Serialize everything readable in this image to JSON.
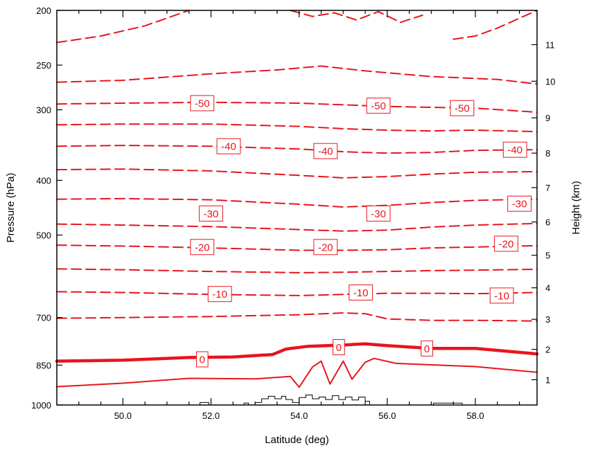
{
  "chart_data": {
    "type": "line",
    "chart_kind": "cross-section contour plot of temperature",
    "xlabel": "Latitude (deg)",
    "ylabel": "Pressure (hPa)",
    "y2label": "Height (km)",
    "xlim": [
      48.5,
      59.4
    ],
    "ylim": [
      1000,
      200
    ],
    "y_scale": "log",
    "y_reversed": true,
    "grid": false,
    "legend": "none",
    "x_ticks": [
      "50.0",
      "52.0",
      "54.0",
      "56.0",
      "58.0"
    ],
    "x_tick_values": [
      50,
      52,
      54,
      56,
      58
    ],
    "y_ticks": [
      "200",
      "250",
      "300",
      "400",
      "500",
      "700",
      "850",
      "1000"
    ],
    "y_tick_values": [
      200,
      250,
      300,
      400,
      500,
      700,
      850,
      1000
    ],
    "y2_ticks": [
      "1",
      "2",
      "3",
      "4",
      "5",
      "6",
      "7",
      "8",
      "9",
      "10",
      "11"
    ],
    "y2_tick_pressures": [
      902,
      797,
      705,
      620,
      543,
      474,
      412,
      358,
      310,
      267,
      230
    ],
    "contour_color": "#e8141b",
    "terrain_color": "#000000",
    "series": [
      {
        "level": -55,
        "style": "dashed",
        "x": [
          48.5,
          49.5,
          50.5,
          51.5
        ],
        "y": [
          228,
          222,
          213,
          200
        ]
      },
      {
        "level": -55,
        "style": "dashed",
        "x": [
          57.5,
          58.0,
          58.5,
          59.4
        ],
        "y": [
          225,
          222,
          215,
          200
        ]
      },
      {
        "level": -55,
        "style": "dashed",
        "x": [
          53.8,
          54.3,
          54.8,
          55.3,
          55.8,
          56.3,
          56.8
        ],
        "y": [
          200,
          205,
          202,
          208,
          201,
          210,
          204
        ]
      },
      {
        "level": -50,
        "style": "dashed",
        "x": [
          48.5,
          50,
          52,
          53.5,
          54.5,
          55.5,
          57,
          58.5,
          59.4
        ],
        "y": [
          268,
          266,
          259,
          255,
          251,
          256,
          262,
          265,
          270
        ]
      },
      {
        "level": -50,
        "style": "dashed",
        "x": [
          48.5,
          50,
          52,
          54,
          55,
          56,
          57,
          58,
          59.4
        ],
        "y": [
          293,
          292,
          291,
          292,
          294,
          296,
          297,
          298,
          303
        ]
      },
      {
        "level": -45,
        "style": "dashed",
        "x": [
          48.5,
          50,
          52,
          54,
          55,
          56,
          57,
          58,
          59.4
        ],
        "y": [
          319,
          318,
          318,
          321,
          324,
          326,
          327,
          326,
          328
        ]
      },
      {
        "level": -40,
        "style": "dashed",
        "x": [
          48.5,
          50,
          52,
          54,
          55,
          56,
          57,
          58,
          59.4
        ],
        "y": [
          348,
          347,
          348,
          352,
          356,
          358,
          357,
          354,
          353
        ]
      },
      {
        "level": -35,
        "style": "dashed",
        "x": [
          48.5,
          50,
          52,
          54,
          55,
          56,
          57,
          58,
          59.4
        ],
        "y": [
          383,
          382,
          385,
          392,
          396,
          394,
          390,
          387,
          386
        ]
      },
      {
        "level": -30,
        "style": "dashed",
        "x": [
          48.5,
          50,
          52,
          54,
          55,
          56,
          57,
          58,
          59.4
        ],
        "y": [
          432,
          431,
          433,
          441,
          446,
          443,
          438,
          434,
          432
        ]
      },
      {
        "level": -25,
        "style": "dashed",
        "x": [
          48.5,
          50,
          52,
          54,
          55,
          56,
          57,
          58,
          59.4
        ],
        "y": [
          478,
          480,
          483,
          489,
          492,
          490,
          484,
          480,
          477
        ]
      },
      {
        "level": -20,
        "style": "dashed",
        "x": [
          48.5,
          50,
          52,
          54,
          55,
          56,
          57,
          58,
          59.4
        ],
        "y": [
          521,
          523,
          527,
          532,
          532,
          531,
          527,
          525,
          522
        ]
      },
      {
        "level": -15,
        "style": "dashed",
        "x": [
          48.5,
          50,
          52,
          54,
          55,
          56,
          57,
          58,
          59.4
        ],
        "y": [
          574,
          576,
          580,
          583,
          582,
          580,
          578,
          577,
          575
        ]
      },
      {
        "level": -10,
        "style": "dashed",
        "x": [
          48.5,
          50,
          52,
          54,
          55,
          56,
          57,
          58,
          59.4
        ],
        "y": [
          630,
          632,
          637,
          640,
          637,
          634,
          634,
          635,
          632
        ]
      },
      {
        "level": -5,
        "style": "dashed",
        "x": [
          48.5,
          50,
          52,
          54,
          55,
          55.5,
          56,
          57,
          58,
          59.4
        ],
        "y": [
          702,
          700,
          697,
          692,
          687,
          689,
          704,
          708,
          708,
          710
        ]
      },
      {
        "level": 0,
        "style": "thick",
        "x": [
          48.5,
          50,
          51.5,
          52.5,
          53.4,
          53.7,
          54.2,
          55.0,
          55.5,
          56.0,
          57.0,
          58.0,
          59.4
        ],
        "y": [
          836,
          833,
          824,
          822,
          814,
          796,
          787,
          783,
          779,
          785,
          794,
          794,
          812
        ]
      },
      {
        "level": 5,
        "style": "solid",
        "x": [
          48.5,
          50,
          51.5,
          53,
          53.8,
          54.0,
          54.3,
          54.5,
          54.7,
          55.0,
          55.2,
          55.5,
          55.7,
          56.2,
          57,
          58,
          59.4
        ],
        "y": [
          928,
          915,
          897,
          899,
          890,
          930,
          857,
          836,
          918,
          836,
          900,
          840,
          827,
          844,
          849,
          855,
          875
        ]
      }
    ],
    "labels": [
      {
        "text": "-50",
        "x": 51.8,
        "y": 292
      },
      {
        "text": "-50",
        "x": 55.8,
        "y": 295
      },
      {
        "text": "-50",
        "x": 57.7,
        "y": 298
      },
      {
        "text": "-40",
        "x": 52.4,
        "y": 348
      },
      {
        "text": "-40",
        "x": 54.6,
        "y": 355
      },
      {
        "text": "-40",
        "x": 58.9,
        "y": 353
      },
      {
        "text": "-30",
        "x": 52.0,
        "y": 458
      },
      {
        "text": "-30",
        "x": 55.8,
        "y": 458
      },
      {
        "text": "-30",
        "x": 59.0,
        "y": 440
      },
      {
        "text": "-20",
        "x": 51.8,
        "y": 525
      },
      {
        "text": "-20",
        "x": 54.6,
        "y": 525
      },
      {
        "text": "-20",
        "x": 58.7,
        "y": 518
      },
      {
        "text": "-10",
        "x": 52.2,
        "y": 636
      },
      {
        "text": "-10",
        "x": 55.4,
        "y": 632
      },
      {
        "text": "-10",
        "x": 58.6,
        "y": 640
      },
      {
        "text": "0",
        "x": 51.8,
        "y": 830
      },
      {
        "text": "0",
        "x": 54.9,
        "y": 790
      },
      {
        "text": "0",
        "x": 56.9,
        "y": 794
      }
    ],
    "terrain": [
      {
        "x": [
          51.75,
          51.75,
          51.95,
          51.95
        ],
        "y": [
          1000,
          990,
          990,
          1000
        ]
      },
      {
        "x": [
          52.75,
          52.75,
          52.85,
          52.85
        ],
        "y": [
          1000,
          992,
          992,
          1000
        ]
      },
      {
        "x": [
          53.0,
          53.0,
          53.15,
          53.15,
          53.3,
          53.3,
          53.45,
          53.45,
          53.6,
          53.6,
          53.7,
          53.7,
          53.85,
          53.85,
          54.0,
          54.0,
          54.15,
          54.15,
          54.3,
          54.3,
          54.45,
          54.45,
          54.6,
          54.6,
          54.75,
          54.75,
          54.9,
          54.9,
          55.05,
          55.05,
          55.2,
          55.2,
          55.35,
          55.35,
          55.5,
          55.5,
          55.6,
          55.6
        ],
        "y": [
          1000,
          990,
          990,
          975,
          975,
          965,
          965,
          975,
          975,
          965,
          965,
          978,
          978,
          990,
          990,
          970,
          970,
          960,
          960,
          975,
          975,
          968,
          968,
          978,
          978,
          963,
          963,
          978,
          978,
          968,
          968,
          980,
          980,
          968,
          968,
          985,
          985,
          1000
        ]
      },
      {
        "x": [
          57.05,
          57.05,
          57.7,
          57.7
        ],
        "y": [
          1000,
          992,
          992,
          1000
        ]
      }
    ]
  }
}
